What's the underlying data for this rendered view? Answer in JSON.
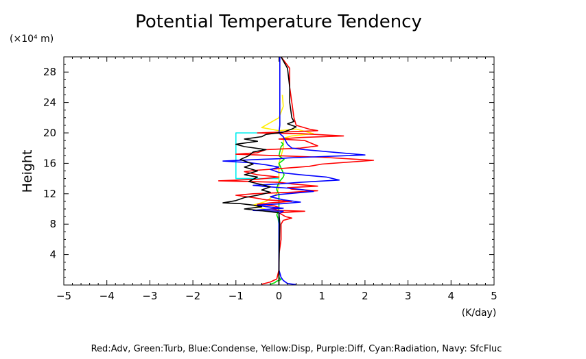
{
  "chart_data": {
    "type": "line",
    "title": "Potential Temperature Tendency",
    "ylabel": "Height",
    "yunit": "(×10⁴ m)",
    "xunit": "(K/day)",
    "xlim": [
      -5,
      5
    ],
    "ylim": [
      0,
      30
    ],
    "xticks": [
      -5,
      -4,
      -3,
      -2,
      -1,
      0,
      1,
      2,
      3,
      4,
      5
    ],
    "xtick_labels": [
      "−5",
      "−4",
      "−3",
      "−2",
      "−1",
      "0",
      "1",
      "2",
      "3",
      "4",
      "5"
    ],
    "yticks": [
      4,
      8,
      12,
      16,
      20,
      24,
      28
    ],
    "ytick_labels": [
      "4",
      "8",
      "12",
      "16",
      "20",
      "24",
      "28"
    ],
    "grid": false,
    "legend_text": "Red:Adv, Green:Turb, Blue:Condense, Yellow:Disp, Purple:Diff, Cyan:Radiation, Navy: SfcFluc",
    "colors": {
      "red": "#ff0000",
      "green": "#00e000",
      "blue": "#0000ff",
      "yellow": "#ffee00",
      "cyan": "#00eeee",
      "total": "#000000"
    },
    "series": [
      {
        "color": "yellow",
        "points": [
          [
            0.08,
            25
          ],
          [
            0.1,
            23.5
          ],
          [
            0.0,
            22
          ],
          [
            -0.4,
            20.7
          ],
          [
            0.0,
            20.3
          ],
          [
            0.4,
            20.5
          ],
          [
            0.8,
            19.9
          ],
          [
            0.3,
            19.6
          ],
          [
            0.1,
            19.3
          ],
          [
            0.1,
            18
          ],
          [
            0.0,
            16
          ],
          [
            0.0,
            13
          ],
          [
            -0.05,
            12
          ],
          [
            -0.3,
            11
          ],
          [
            -0.6,
            10.5
          ],
          [
            -0.4,
            10.1
          ],
          [
            -0.2,
            9.8
          ],
          [
            0.0,
            9.5
          ],
          [
            0.0,
            0.1
          ]
        ]
      },
      {
        "color": "green",
        "points": [
          [
            0.05,
            18.8
          ],
          [
            0.1,
            18.5
          ],
          [
            0.05,
            18.2
          ],
          [
            0.0,
            17
          ],
          [
            0.12,
            16.5
          ],
          [
            0.0,
            16
          ],
          [
            0.12,
            14.5
          ],
          [
            0.1,
            14.2
          ],
          [
            0.0,
            13.5
          ],
          [
            -0.05,
            12.8
          ],
          [
            -0.05,
            12.5
          ],
          [
            0.0,
            12
          ],
          [
            0.0,
            10
          ],
          [
            -0.05,
            9.2
          ],
          [
            -0.02,
            8.8
          ],
          [
            0.0,
            8
          ],
          [
            0.0,
            1.0
          ],
          [
            0.05,
            0.7
          ],
          [
            -0.05,
            0.5
          ],
          [
            -0.1,
            0.3
          ],
          [
            -0.2,
            0.1
          ]
        ]
      },
      {
        "color": "cyan",
        "points": [
          [
            0,
            20
          ],
          [
            -1,
            20
          ],
          [
            -1,
            14
          ],
          [
            0,
            14
          ]
        ]
      },
      {
        "color": "red",
        "points": [
          [
            0.05,
            30
          ],
          [
            0.25,
            28.5
          ],
          [
            0.25,
            26
          ],
          [
            0.3,
            24
          ],
          [
            0.35,
            22
          ],
          [
            0.4,
            21
          ],
          [
            0.7,
            20.5
          ],
          [
            0.9,
            20.3
          ],
          [
            0.5,
            20.2
          ],
          [
            -0.5,
            20.0
          ],
          [
            0.5,
            19.9
          ],
          [
            1.5,
            19.6
          ],
          [
            0.5,
            19.4
          ],
          [
            0.0,
            19.2
          ],
          [
            0.6,
            19.0
          ],
          [
            0.9,
            18.3
          ],
          [
            0.5,
            18.0
          ],
          [
            -0.3,
            17.8
          ],
          [
            -0.5,
            17.4
          ],
          [
            -1.0,
            17.2
          ],
          [
            0.0,
            17.0
          ],
          [
            1.0,
            16.8
          ],
          [
            2.2,
            16.4
          ],
          [
            1.0,
            15.9
          ],
          [
            0.7,
            15.6
          ],
          [
            0.0,
            15.3
          ],
          [
            -0.5,
            15.1
          ],
          [
            -0.8,
            14.9
          ],
          [
            -0.5,
            14.5
          ],
          [
            0.0,
            14.2
          ],
          [
            -0.5,
            13.9
          ],
          [
            -1.4,
            13.7
          ],
          [
            0.0,
            13.5
          ],
          [
            0.3,
            13.3
          ],
          [
            0.9,
            13.0
          ],
          [
            0.2,
            12.8
          ],
          [
            0.3,
            12.6
          ],
          [
            0.9,
            12.4
          ],
          [
            0.3,
            12.2
          ],
          [
            -0.6,
            12.0
          ],
          [
            -1.0,
            11.8
          ],
          [
            -0.6,
            11.5
          ],
          [
            -0.3,
            11.2
          ],
          [
            0.3,
            11.0
          ],
          [
            -0.2,
            10.8
          ],
          [
            -0.5,
            10.6
          ],
          [
            -0.1,
            10.4
          ],
          [
            0.0,
            10.2
          ],
          [
            -0.2,
            10.0
          ],
          [
            0.0,
            9.8
          ],
          [
            0.6,
            9.7
          ],
          [
            0.0,
            9.5
          ],
          [
            0.15,
            9.0
          ],
          [
            0.3,
            8.8
          ],
          [
            0.1,
            8.5
          ],
          [
            0.05,
            8.0
          ],
          [
            0.05,
            6
          ],
          [
            0.0,
            4
          ],
          [
            0.0,
            2
          ],
          [
            -0.05,
            0.8
          ],
          [
            -0.2,
            0.4
          ],
          [
            -0.4,
            0.1
          ]
        ]
      },
      {
        "color": "blue",
        "points": [
          [
            0.02,
            30
          ],
          [
            0.02,
            24
          ],
          [
            0.02,
            21
          ],
          [
            0.0,
            20
          ],
          [
            0.1,
            19.5
          ],
          [
            0.2,
            18.5
          ],
          [
            0.3,
            18.0
          ],
          [
            0.6,
            17.8
          ],
          [
            1.2,
            17.5
          ],
          [
            2.0,
            17.1
          ],
          [
            0.6,
            16.8
          ],
          [
            0.2,
            16.7
          ],
          [
            0.0,
            16.6
          ],
          [
            -0.5,
            16.5
          ],
          [
            -1.3,
            16.3
          ],
          [
            -0.7,
            16.1
          ],
          [
            -0.3,
            15.8
          ],
          [
            0.0,
            15.5
          ],
          [
            -0.2,
            15.2
          ],
          [
            0.0,
            14.8
          ],
          [
            0.5,
            14.5
          ],
          [
            1.1,
            14.2
          ],
          [
            1.4,
            13.8
          ],
          [
            0.5,
            13.5
          ],
          [
            0.0,
            13.3
          ],
          [
            -0.6,
            13.1
          ],
          [
            -0.2,
            12.9
          ],
          [
            0.3,
            12.7
          ],
          [
            0.6,
            12.5
          ],
          [
            0.8,
            12.3
          ],
          [
            0.4,
            12.1
          ],
          [
            0.0,
            11.9
          ],
          [
            -0.2,
            11.6
          ],
          [
            0.1,
            11.2
          ],
          [
            0.5,
            10.9
          ],
          [
            0.1,
            10.7
          ],
          [
            -0.5,
            10.5
          ],
          [
            -0.3,
            10.3
          ],
          [
            0.1,
            10.1
          ],
          [
            -0.4,
            9.9
          ],
          [
            -0.6,
            9.8
          ],
          [
            0.1,
            9.7
          ],
          [
            0.0,
            9.4
          ],
          [
            0.0,
            8
          ],
          [
            0.0,
            2
          ],
          [
            0.05,
            1.0
          ],
          [
            0.1,
            0.6
          ],
          [
            0.2,
            0.2
          ],
          [
            0.4,
            0.05
          ]
        ]
      },
      {
        "color": "total",
        "points": [
          [
            0.05,
            30
          ],
          [
            0.2,
            28.5
          ],
          [
            0.25,
            26
          ],
          [
            0.25,
            24
          ],
          [
            0.3,
            22
          ],
          [
            0.35,
            21.5
          ],
          [
            0.2,
            21.2
          ],
          [
            0.4,
            20.8
          ],
          [
            0.3,
            20.5
          ],
          [
            0.1,
            20.1
          ],
          [
            -0.3,
            19.8
          ],
          [
            -0.4,
            19.5
          ],
          [
            -0.8,
            19.2
          ],
          [
            -0.5,
            18.9
          ],
          [
            -1.0,
            18.5
          ],
          [
            -0.8,
            18.2
          ],
          [
            -0.3,
            17.8
          ],
          [
            -0.6,
            17.5
          ],
          [
            -0.7,
            17.0
          ],
          [
            -0.9,
            16.5
          ],
          [
            -0.6,
            15.9
          ],
          [
            -0.8,
            15.5
          ],
          [
            -0.5,
            15.0
          ],
          [
            -0.8,
            14.5
          ],
          [
            -0.5,
            14.2
          ],
          [
            -0.7,
            13.6
          ],
          [
            -0.4,
            13.2
          ],
          [
            -0.2,
            12.9
          ],
          [
            -0.4,
            12.5
          ],
          [
            -0.2,
            12.2
          ],
          [
            -0.5,
            11.8
          ],
          [
            -0.8,
            11.5
          ],
          [
            -1.0,
            11.1
          ],
          [
            -1.3,
            10.8
          ],
          [
            -0.9,
            10.7
          ],
          [
            -0.6,
            10.5
          ],
          [
            -0.4,
            10.3
          ],
          [
            -0.8,
            10.0
          ],
          [
            -0.3,
            9.7
          ],
          [
            0.0,
            9.5
          ],
          [
            0.02,
            8
          ],
          [
            0.0,
            2
          ],
          [
            0.0,
            0.0
          ]
        ]
      }
    ]
  }
}
